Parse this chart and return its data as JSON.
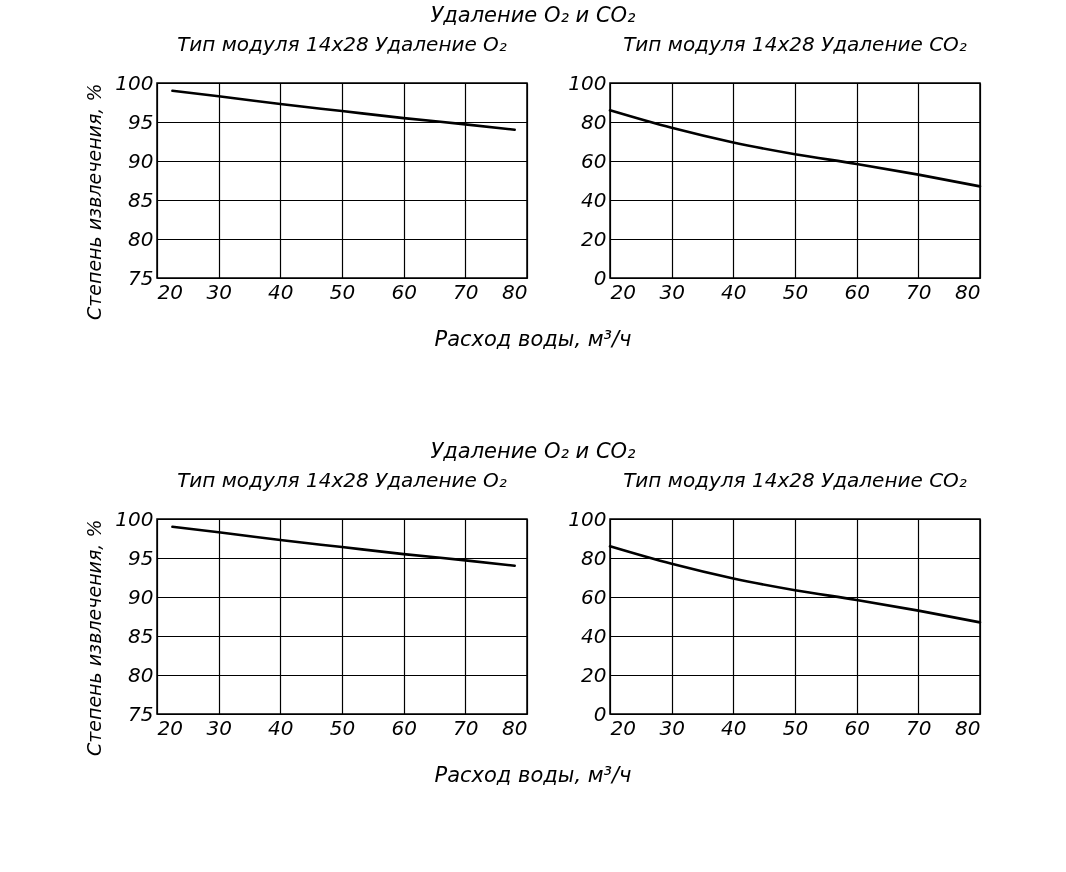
{
  "chart_data": [
    {
      "type": "line",
      "title": "Удаление O₂ и CO₂",
      "subtitle": "Тип модуля 14x28   Удаление O₂",
      "ylabel": "Степень извлечения, %",
      "xlabel": "Расход воды, м³/ч",
      "x": [
        22.5,
        30,
        40,
        50,
        60,
        70,
        78
      ],
      "series": [
        {
          "color": "#000000",
          "values": [
            99,
            98.3,
            97.3,
            96.4,
            95.5,
            94.7,
            94
          ]
        }
      ],
      "xlim": [
        20,
        80
      ],
      "xticks": [
        20,
        30,
        40,
        50,
        60,
        70,
        80
      ],
      "ylim": [
        75,
        100
      ],
      "yticks": [
        75,
        80,
        85,
        90,
        95,
        100
      ],
      "grid": true
    },
    {
      "type": "line",
      "subtitle": "Тип модуля 14x28   Удаление CO₂",
      "x": [
        20,
        30,
        40,
        50,
        60,
        70,
        80
      ],
      "series": [
        {
          "color": "#000000",
          "values": [
            86,
            77,
            69.5,
            63.5,
            58.5,
            53,
            47
          ]
        }
      ],
      "xlim": [
        20,
        80
      ],
      "xticks": [
        20,
        30,
        40,
        50,
        60,
        70,
        80
      ],
      "ylim": [
        0,
        100
      ],
      "yticks": [
        0,
        20,
        40,
        60,
        80,
        100
      ],
      "grid": true
    },
    {
      "type": "line",
      "title": "Удаление O₂ и CO₂",
      "subtitle": "Тип модуля 14x28   Удаление O₂",
      "ylabel": "Степень извлечения, %",
      "xlabel": "Расход воды, м³/ч",
      "x": [
        22.5,
        30,
        40,
        50,
        60,
        70,
        78
      ],
      "series": [
        {
          "color": "#000000",
          "values": [
            99,
            98.3,
            97.3,
            96.4,
            95.5,
            94.7,
            94
          ]
        }
      ],
      "xlim": [
        20,
        80
      ],
      "xticks": [
        20,
        30,
        40,
        50,
        60,
        70,
        80
      ],
      "ylim": [
        75,
        100
      ],
      "yticks": [
        75,
        80,
        85,
        90,
        95,
        100
      ],
      "grid": true
    },
    {
      "type": "line",
      "subtitle": "Тип модуля 14x28   Удаление CO₂",
      "x": [
        20,
        30,
        40,
        50,
        60,
        70,
        80
      ],
      "series": [
        {
          "color": "#000000",
          "values": [
            86,
            77,
            69.5,
            63.5,
            58.5,
            53,
            47
          ]
        }
      ],
      "xlim": [
        20,
        80
      ],
      "xticks": [
        20,
        30,
        40,
        50,
        60,
        70,
        80
      ],
      "ylim": [
        0,
        100
      ],
      "yticks": [
        0,
        20,
        40,
        60,
        80,
        100
      ],
      "grid": true
    }
  ]
}
